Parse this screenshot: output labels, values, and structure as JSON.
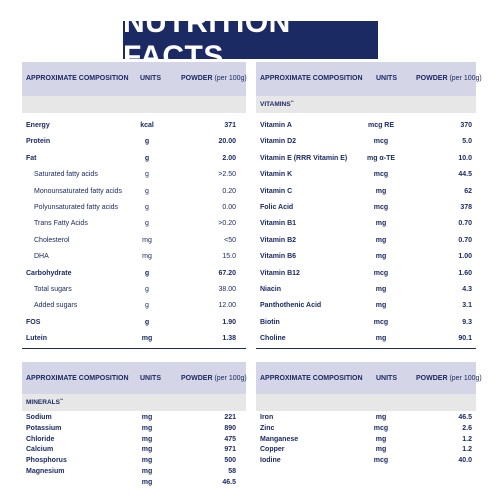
{
  "title": "NUTRITION FACTS",
  "headers": {
    "composition": "APPROXIMATE COMPOSITION",
    "units": "UNITS",
    "powder": "POWDER",
    "powder_sub": "(per 100g)"
  },
  "vitamins_label": "VITAMINS",
  "vitamins_mark": "**",
  "minerals_label": "MINERALS",
  "minerals_mark": "**",
  "left_top": [
    {
      "name": "Energy",
      "unit": "kcal",
      "value": "371",
      "style": "bold"
    },
    {
      "name": "Protein",
      "unit": "g",
      "value": "20.00",
      "style": "bold"
    },
    {
      "name": "Fat",
      "unit": "g",
      "value": "2.00",
      "style": "bold"
    },
    {
      "name": "Saturated fatty acids",
      "unit": "g",
      "value": ">2.50",
      "style": "sub"
    },
    {
      "name": "Monounsaturated fatty acids",
      "unit": "g",
      "value": "0.20",
      "style": "sub"
    },
    {
      "name": "Polyunsaturated fatty acids",
      "unit": "g",
      "value": "0.00",
      "style": "sub"
    },
    {
      "name": "Trans Fatty Acids",
      "unit": "g",
      "value": ">0.20",
      "style": "sub"
    },
    {
      "name": "Cholesterol",
      "unit": "mg",
      "value": "<50",
      "style": "sub"
    },
    {
      "name": "DHA",
      "unit": "mg",
      "value": "15.0",
      "style": "sub"
    },
    {
      "name": "Carbohydrate",
      "unit": "g",
      "value": "67.20",
      "style": "bold"
    },
    {
      "name": "Total sugars",
      "unit": "g",
      "value": "38.00",
      "style": "sub"
    },
    {
      "name": "Added sugars",
      "unit": "g",
      "value": "12.00",
      "style": "sub"
    },
    {
      "name": "FOS",
      "unit": "g",
      "value": "1.90",
      "style": "bold"
    },
    {
      "name": "Lutein",
      "unit": "mg",
      "value": "1.38",
      "style": "bold"
    }
  ],
  "right_top": [
    {
      "name": "Vitamin A",
      "unit": "mcg RE",
      "value": "370",
      "style": "bold"
    },
    {
      "name": "Vitamin D2",
      "unit": "mcg",
      "value": "5.0",
      "style": "bold"
    },
    {
      "name": "Vitamin E (RRR Vitamin E)",
      "unit": "mg α-TE",
      "value": "10.0",
      "style": "bold"
    },
    {
      "name": "Vitamin K",
      "unit": "mcg",
      "value": "44.5",
      "style": "bold"
    },
    {
      "name": "Vitamin C",
      "unit": "mg",
      "value": "62",
      "style": "bold"
    },
    {
      "name": "Folic Acid",
      "unit": "mcg",
      "value": "378",
      "style": "bold"
    },
    {
      "name": "Vitamin B1",
      "unit": "mg",
      "value": "0.70",
      "style": "bold"
    },
    {
      "name": "Vitamin B2",
      "unit": "mg",
      "value": "0.70",
      "style": "bold"
    },
    {
      "name": "Vitamin B6",
      "unit": "mg",
      "value": "1.00",
      "style": "bold"
    },
    {
      "name": "Vitamin B12",
      "unit": "mcg",
      "value": "1.60",
      "style": "bold"
    },
    {
      "name": "Niacin",
      "unit": "mg",
      "value": "4.3",
      "style": "bold"
    },
    {
      "name": "Panthothenic Acid",
      "unit": "mg",
      "value": "3.1",
      "style": "bold"
    },
    {
      "name": "Biotin",
      "unit": "mcg",
      "value": "9.3",
      "style": "bold"
    },
    {
      "name": "Choline",
      "unit": "mg",
      "value": "90.1",
      "style": "bold"
    }
  ],
  "left_bottom": [
    {
      "name": "Sodium",
      "unit": "mg",
      "value": "221",
      "style": "bold"
    },
    {
      "name": "Potassium",
      "unit": "mg",
      "value": "890",
      "style": "bold"
    },
    {
      "name": "Chloride",
      "unit": "mg",
      "value": "475",
      "style": "bold"
    },
    {
      "name": "Calcium",
      "unit": "mg",
      "value": "971",
      "style": "bold"
    },
    {
      "name": "Phosphorus",
      "unit": "mg",
      "value": "500",
      "style": "bold"
    },
    {
      "name": "Magnesium",
      "unit": "mg",
      "value": "58",
      "style": "bold"
    },
    {
      "name": "",
      "unit": "mg",
      "value": "46.5",
      "style": "bold"
    }
  ],
  "right_bottom": [
    {
      "name": "Iron",
      "unit": "mg",
      "value": "46.5",
      "style": "bold"
    },
    {
      "name": "Zinc",
      "unit": "mcg",
      "value": "2.6",
      "style": "bold"
    },
    {
      "name": "Manganese",
      "unit": "mg",
      "value": "1.2",
      "style": "bold"
    },
    {
      "name": "Copper",
      "unit": "mg",
      "value": "1.2",
      "style": "bold"
    },
    {
      "name": "Iodine",
      "unit": "mcg",
      "value": "40.0",
      "style": "bold"
    }
  ]
}
